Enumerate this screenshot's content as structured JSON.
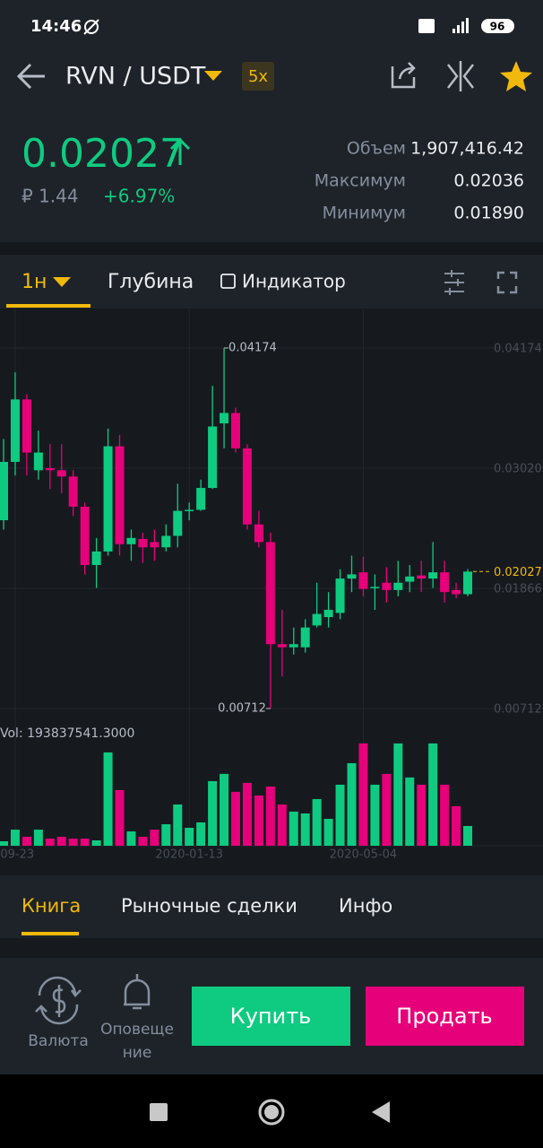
{
  "status_bar": {
    "time": "14:46",
    "battery": "96"
  },
  "header": {
    "pair": "RVN / USDT",
    "leverage": "5x"
  },
  "ticker": {
    "price": "0.02027",
    "fiat": "₽ 1.44",
    "change": "+6.97%",
    "stats": [
      {
        "label": "Объем",
        "value": "1,907,416.42"
      },
      {
        "label": "Максимум",
        "value": "0.02036"
      },
      {
        "label": "Минимум",
        "value": "0.01890"
      }
    ]
  },
  "chart_tabs": [
    "1н",
    "Глубина",
    "Индикатор"
  ],
  "chart_data": {
    "type": "candlestick",
    "up_color": "#0ecb81",
    "down_color": "#e6007a",
    "categories": [
      null,
      "-09-23",
      null,
      null,
      null,
      null,
      null,
      null,
      null,
      null,
      null,
      null,
      null,
      null,
      null,
      null,
      "2020-01-13",
      null,
      null,
      null,
      null,
      null,
      null,
      null,
      null,
      null,
      null,
      null,
      null,
      null,
      null,
      "2020-05-04",
      null,
      null,
      null,
      null,
      null,
      null,
      null,
      null,
      null
    ],
    "open": [
      0.0252,
      0.0308,
      0.0368,
      0.03,
      0.0302,
      0.03,
      0.0294,
      0.0265,
      0.0209,
      0.0222,
      0.0323,
      0.0229,
      0.0234,
      0.0231,
      0.0226,
      0.0237,
      0.0261,
      0.0262,
      0.0283,
      0.0345,
      0.0355,
      0.0321,
      0.0248,
      0.0231,
      0.0133,
      0.013,
      0.013,
      0.0151,
      0.0159,
      0.0163,
      0.0196,
      0.0202,
      0.0187,
      0.0192,
      0.0185,
      0.0193,
      0.0199,
      0.0196,
      0.0202,
      0.0185,
      0.0181
    ],
    "high": [
      0.033,
      0.0394,
      0.0373,
      0.0338,
      0.0325,
      0.0325,
      0.03,
      0.0269,
      0.0235,
      0.034,
      0.0334,
      0.0243,
      0.024,
      0.0243,
      0.0248,
      0.0287,
      0.0269,
      0.0291,
      0.0381,
      0.04174,
      0.036,
      0.0325,
      0.0261,
      0.024,
      0.0166,
      0.0149,
      0.0157,
      0.0192,
      0.0183,
      0.0205,
      0.0218,
      0.0217,
      0.02,
      0.0207,
      0.0213,
      0.0209,
      0.0213,
      0.0231,
      0.0213,
      0.0192,
      0.0205
    ],
    "low": [
      0.0243,
      0.0295,
      0.0295,
      0.0291,
      0.0282,
      0.0278,
      0.0256,
      0.02,
      0.0187,
      0.0218,
      0.0218,
      0.0213,
      0.0211,
      0.0213,
      0.0222,
      0.0226,
      0.0252,
      0.0261,
      0.0282,
      0.0321,
      0.0317,
      0.0243,
      0.0226,
      0.00712,
      0.0102,
      0.0123,
      0.0125,
      0.0149,
      0.0149,
      0.0157,
      0.0183,
      0.0179,
      0.0166,
      0.0173,
      0.0179,
      0.0183,
      0.0183,
      0.0187,
      0.0173,
      0.0177,
      0.0179
    ],
    "close": [
      0.0308,
      0.0368,
      0.0317,
      0.0317,
      0.03,
      0.0294,
      0.0265,
      0.0209,
      0.0222,
      0.0323,
      0.0229,
      0.0235,
      0.0226,
      0.0226,
      0.0237,
      0.0261,
      0.0262,
      0.0283,
      0.0342,
      0.0355,
      0.0321,
      0.0248,
      0.0231,
      0.0133,
      0.013,
      0.0133,
      0.0149,
      0.0162,
      0.0166,
      0.0196,
      0.02,
      0.0186,
      0.0188,
      0.0185,
      0.0192,
      0.0198,
      0.0196,
      0.0202,
      0.0183,
      0.0181,
      0.02027
    ],
    "volume": [
      44000000,
      158000000,
      88000000,
      158000000,
      70000000,
      88000000,
      70000000,
      70000000,
      53000000,
      916000000,
      546000000,
      141000000,
      88000000,
      158000000,
      211000000,
      405000000,
      176000000,
      229000000,
      634000000,
      705000000,
      529000000,
      617000000,
      493000000,
      581000000,
      405000000,
      335000000,
      317000000,
      458000000,
      264000000,
      599000000,
      810000000,
      1004000000,
      599000000,
      705000000,
      1004000000,
      670000000,
      599000000,
      1004000000,
      599000000,
      388000000,
      193837541.3
    ],
    "volume_label": "Vol: 193837541.3000",
    "ylim": [
      0.00583,
      0.04544
    ],
    "yticks": [
      0.04174,
      {
        "value": 0.0302,
        "label": "0.03020"
      },
      0.01866,
      0.00712
    ],
    "volume_ylim": [
      0,
      1100000000
    ],
    "grid": true
  },
  "book_tabs": [
    "Книга",
    "Рыночные сделки",
    "Инфо"
  ],
  "bottom_bar": {
    "currency": "Валюта",
    "alerts": [
      "Оповеще",
      "ние"
    ],
    "buy": "Купить",
    "sell": "Продать"
  }
}
